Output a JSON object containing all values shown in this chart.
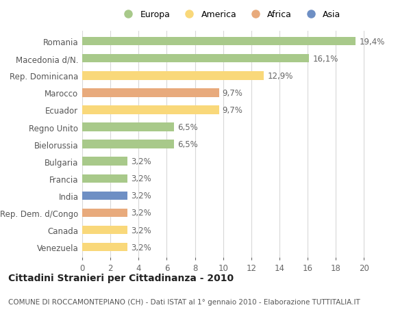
{
  "countries": [
    "Romania",
    "Macedonia d/N.",
    "Rep. Dominicana",
    "Marocco",
    "Ecuador",
    "Regno Unito",
    "Bielorussia",
    "Bulgaria",
    "Francia",
    "India",
    "Rep. Dem. d/Congo",
    "Canada",
    "Venezuela"
  ],
  "values": [
    19.4,
    16.1,
    12.9,
    9.7,
    9.7,
    6.5,
    6.5,
    3.2,
    3.2,
    3.2,
    3.2,
    3.2,
    3.2
  ],
  "labels": [
    "19,4%",
    "16,1%",
    "12,9%",
    "9,7%",
    "9,7%",
    "6,5%",
    "6,5%",
    "3,2%",
    "3,2%",
    "3,2%",
    "3,2%",
    "3,2%",
    "3,2%"
  ],
  "colors": [
    "#a8c98a",
    "#a8c98a",
    "#f9d87a",
    "#e8aa7c",
    "#f9d87a",
    "#a8c98a",
    "#a8c98a",
    "#a8c98a",
    "#a8c98a",
    "#6e8fc4",
    "#e8aa7c",
    "#f9d87a",
    "#f9d87a"
  ],
  "legend_labels": [
    "Europa",
    "America",
    "Africa",
    "Asia"
  ],
  "legend_colors": [
    "#a8c98a",
    "#f9d87a",
    "#e8aa7c",
    "#6e8fc4"
  ],
  "title": "Cittadini Stranieri per Cittadinanza - 2010",
  "subtitle": "COMUNE DI ROCCAMONTEPIANO (CH) - Dati ISTAT al 1° gennaio 2010 - Elaborazione TUTTITALIA.IT",
  "xlim": [
    0,
    21
  ],
  "xticks": [
    0,
    2,
    4,
    6,
    8,
    10,
    12,
    14,
    16,
    18,
    20
  ],
  "bg_color": "#ffffff",
  "grid_color": "#d8d8d8",
  "bar_height": 0.5,
  "label_fontsize": 8.5,
  "ytick_fontsize": 8.5,
  "xtick_fontsize": 8.5,
  "title_fontsize": 10,
  "subtitle_fontsize": 7.5
}
